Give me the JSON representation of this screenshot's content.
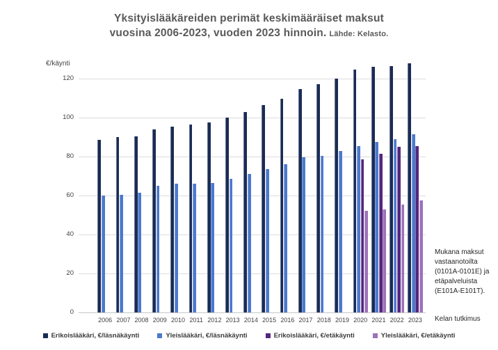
{
  "title": {
    "line1": "Yksityislääkäreiden perimät keskimääräiset maksut",
    "line2": "vuosina 2006-2023, vuoden 2023 hinnoin.",
    "source": "Lähde: Kelasto."
  },
  "annotation": "Mukana maksut vastaanotoilta (0101A-0101E) ja etäpalveluista (E101A-E101T).",
  "footnote": "Kelan tutkimus",
  "chart_data": {
    "type": "bar",
    "title": "Yksityislääkäreiden perimät keskimääräiset maksut vuosina 2006-2023, vuoden 2023 hinnoin.",
    "subtitle": "Lähde: Kelasto.",
    "ylabel": "€/käynti",
    "xlabel": "",
    "ylim": [
      0,
      130
    ],
    "yticks": [
      0,
      20,
      40,
      60,
      80,
      100,
      120
    ],
    "grid": true,
    "legend_position": "bottom",
    "categories": [
      "2006",
      "2007",
      "2008",
      "2009",
      "2010",
      "2011",
      "2012",
      "2013",
      "2014",
      "2015",
      "2016",
      "2017",
      "2018",
      "2019",
      "2020",
      "2021",
      "2022",
      "2023"
    ],
    "series": [
      {
        "name": "Erikoislääkäri, €/läsnäkäynti",
        "color": "#1A2C55",
        "values": [
          88.5,
          90,
          90.5,
          94,
          95.5,
          96.5,
          97.5,
          100,
          103,
          106.5,
          109.5,
          114.5,
          117,
          120,
          124.5,
          126,
          126.5,
          128
        ]
      },
      {
        "name": "Yleislääkäri, €/läsnäkäynti",
        "color": "#4C79CE",
        "values": [
          60,
          60.5,
          61.5,
          65,
          66,
          66,
          66.5,
          68.5,
          71,
          73.5,
          76,
          79.5,
          80.5,
          83,
          85.5,
          87.5,
          89,
          91.5
        ]
      },
      {
        "name": "Erikoislääkäri, €/etäkäynti",
        "color": "#55267D",
        "values": [
          null,
          null,
          null,
          null,
          null,
          null,
          null,
          null,
          null,
          null,
          null,
          null,
          null,
          null,
          78.5,
          81.5,
          85,
          85.5
        ]
      },
      {
        "name": "Yleislääkäri, €/etäkäynti",
        "color": "#9C72B8",
        "values": [
          null,
          null,
          null,
          null,
          null,
          null,
          null,
          null,
          null,
          null,
          null,
          null,
          null,
          null,
          52,
          53,
          55.5,
          57.5
        ]
      }
    ]
  }
}
